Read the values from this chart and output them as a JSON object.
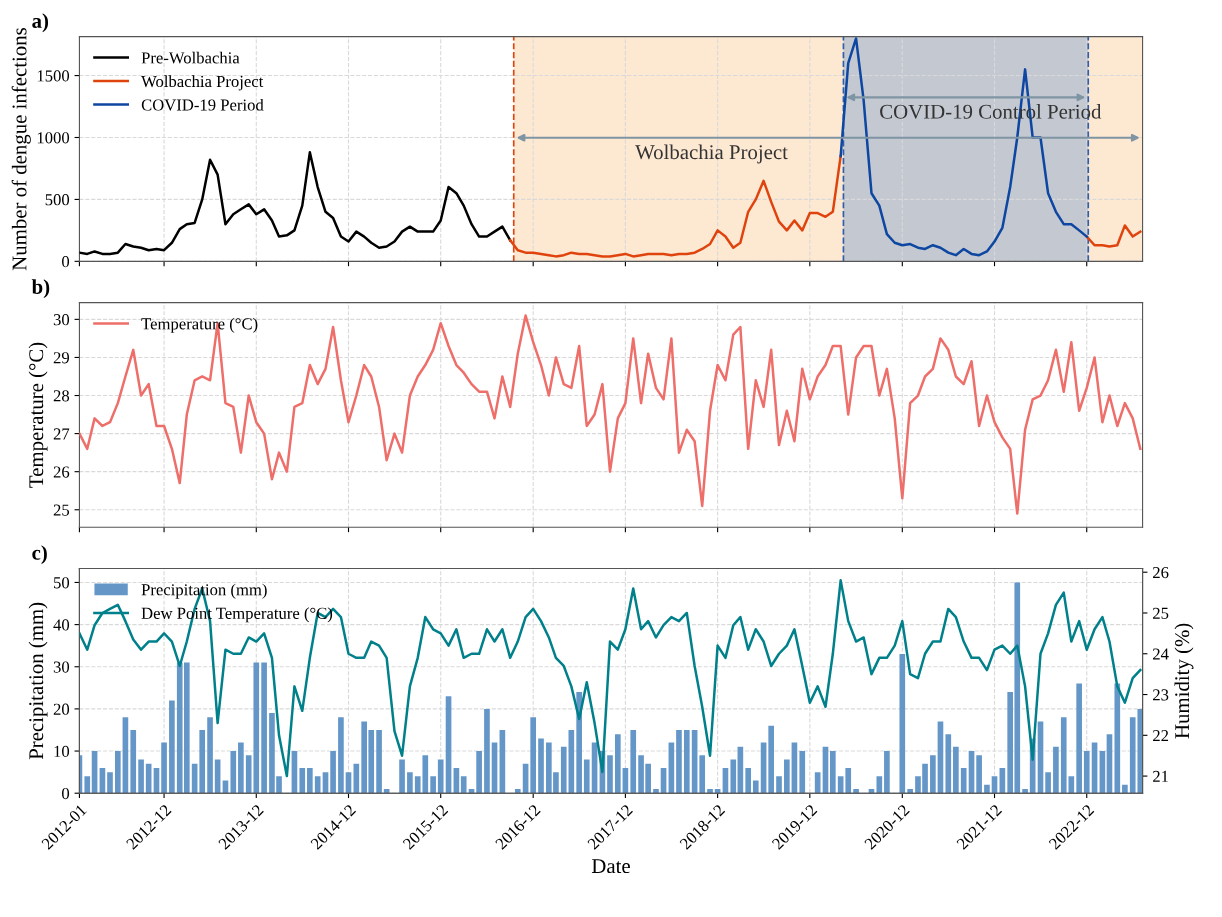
{
  "chart_data": [
    {
      "type": "line",
      "title": "a)",
      "ylabel": "Number of dengue infections",
      "x": [
        "2012-01",
        "2012-02",
        "2012-03",
        "2012-04",
        "2012-05",
        "2012-06",
        "2012-07",
        "2012-08",
        "2012-09",
        "2012-10",
        "2012-11",
        "2012-12",
        "2013-01",
        "2013-02",
        "2013-03",
        "2013-04",
        "2013-05",
        "2013-06",
        "2013-07",
        "2013-08",
        "2013-09",
        "2013-10",
        "2013-11",
        "2013-12",
        "2014-01",
        "2014-02",
        "2014-03",
        "2014-04",
        "2014-05",
        "2014-06",
        "2014-07",
        "2014-08",
        "2014-09",
        "2014-10",
        "2014-11",
        "2014-12",
        "2015-01",
        "2015-02",
        "2015-03",
        "2015-04",
        "2015-05",
        "2015-06",
        "2015-07",
        "2015-08",
        "2015-09",
        "2015-10",
        "2015-11",
        "2015-12",
        "2016-01",
        "2016-02",
        "2016-03",
        "2016-04",
        "2016-05",
        "2016-06",
        "2016-07",
        "2016-08",
        "2016-09",
        "2016-10",
        "2016-11",
        "2016-12",
        "2017-01",
        "2017-02",
        "2017-03",
        "2017-04",
        "2017-05",
        "2017-06",
        "2017-07",
        "2017-08",
        "2017-09",
        "2017-10",
        "2017-11",
        "2017-12",
        "2018-01",
        "2018-02",
        "2018-03",
        "2018-04",
        "2018-05",
        "2018-06",
        "2018-07",
        "2018-08",
        "2018-09",
        "2018-10",
        "2018-11",
        "2018-12",
        "2019-01",
        "2019-02",
        "2019-03",
        "2019-04",
        "2019-05",
        "2019-06",
        "2019-07",
        "2019-08",
        "2019-09",
        "2019-10",
        "2019-11",
        "2019-12",
        "2020-01",
        "2020-02",
        "2020-03",
        "2020-04",
        "2020-05",
        "2020-06",
        "2020-07",
        "2020-08",
        "2020-09",
        "2020-10",
        "2020-11",
        "2020-12",
        "2021-01",
        "2021-02",
        "2021-03",
        "2021-04",
        "2021-05",
        "2021-06",
        "2021-07",
        "2021-08",
        "2021-09",
        "2021-10",
        "2021-11",
        "2021-12",
        "2022-01",
        "2022-02",
        "2022-03",
        "2022-04",
        "2022-05",
        "2022-06",
        "2022-07",
        "2022-08",
        "2022-09",
        "2022-10",
        "2022-11",
        "2022-12",
        "2023-01",
        "2023-02",
        "2023-03",
        "2023-04",
        "2023-05",
        "2023-06",
        "2023-07"
      ],
      "series": [
        {
          "name": "Pre-Wolbachia",
          "color": "#000000",
          "values": [
            70,
            60,
            80,
            60,
            60,
            70,
            140,
            120,
            110,
            90,
            100,
            90,
            150,
            260,
            300,
            310,
            500,
            820,
            700,
            300,
            380,
            420,
            460,
            380,
            420,
            330,
            200,
            210,
            250,
            450,
            880,
            600,
            400,
            350,
            200,
            160,
            240,
            200,
            150,
            110,
            120,
            160,
            240,
            280,
            240,
            240,
            240,
            330,
            600,
            550,
            450,
            300,
            200,
            200,
            240,
            280,
            170,
            null,
            null,
            null,
            null,
            null,
            null,
            null,
            null,
            null,
            null,
            null,
            null,
            null,
            null,
            null,
            null,
            null,
            null,
            null,
            null,
            null,
            null,
            null,
            null,
            null,
            null,
            null,
            null,
            null,
            null,
            null,
            null,
            null,
            null,
            null,
            null,
            null,
            null,
            null,
            null,
            null,
            null,
            null,
            null,
            null,
            null,
            null,
            null,
            null,
            null,
            null,
            null,
            null,
            null,
            null,
            null,
            null,
            null,
            null,
            null,
            null,
            null,
            null,
            null,
            null,
            null,
            null,
            null,
            null,
            null,
            null,
            null,
            null,
            null,
            null,
            null,
            null,
            null,
            null,
            null,
            null,
            null
          ]
        },
        {
          "name": "Wolbachia Project",
          "color": "#e0440e",
          "values": [
            null,
            null,
            null,
            null,
            null,
            null,
            null,
            null,
            null,
            null,
            null,
            null,
            null,
            null,
            null,
            null,
            null,
            null,
            null,
            null,
            null,
            null,
            null,
            null,
            null,
            null,
            null,
            null,
            null,
            null,
            null,
            null,
            null,
            null,
            null,
            null,
            null,
            null,
            null,
            null,
            null,
            null,
            null,
            null,
            null,
            null,
            null,
            null,
            null,
            null,
            null,
            null,
            null,
            null,
            null,
            null,
            170,
            90,
            70,
            70,
            60,
            50,
            40,
            50,
            70,
            60,
            60,
            50,
            40,
            40,
            50,
            60,
            40,
            50,
            60,
            60,
            60,
            50,
            60,
            60,
            70,
            100,
            140,
            250,
            200,
            110,
            150,
            400,
            500,
            650,
            480,
            320,
            250,
            330,
            250,
            390,
            390,
            360,
            400,
            850,
            null,
            null,
            null,
            null,
            null,
            null,
            null,
            null,
            null,
            null,
            null,
            null,
            null,
            null,
            null,
            null,
            null,
            null,
            null,
            null,
            null,
            null,
            null,
            null,
            null,
            null,
            null,
            null,
            null,
            null,
            null,
            200,
            130,
            130,
            120,
            130,
            290,
            200,
            240
          ]
        },
        {
          "name": "COVID-19 Period",
          "color": "#0d47a1",
          "values": [
            null,
            null,
            null,
            null,
            null,
            null,
            null,
            null,
            null,
            null,
            null,
            null,
            null,
            null,
            null,
            null,
            null,
            null,
            null,
            null,
            null,
            null,
            null,
            null,
            null,
            null,
            null,
            null,
            null,
            null,
            null,
            null,
            null,
            null,
            null,
            null,
            null,
            null,
            null,
            null,
            null,
            null,
            null,
            null,
            null,
            null,
            null,
            null,
            null,
            null,
            null,
            null,
            null,
            null,
            null,
            null,
            null,
            null,
            null,
            null,
            null,
            null,
            null,
            null,
            null,
            null,
            null,
            null,
            null,
            null,
            null,
            null,
            null,
            null,
            null,
            null,
            null,
            null,
            null,
            null,
            null,
            null,
            null,
            null,
            null,
            null,
            null,
            null,
            null,
            null,
            null,
            null,
            null,
            null,
            null,
            null,
            null,
            null,
            null,
            850,
            1600,
            1800,
            1300,
            550,
            450,
            220,
            150,
            130,
            140,
            110,
            100,
            130,
            110,
            70,
            50,
            100,
            60,
            50,
            80,
            160,
            270,
            600,
            1000,
            1550,
            1000,
            1000,
            550,
            400,
            300,
            300,
            250,
            200,
            null,
            null,
            null,
            null,
            null,
            null,
            null
          ]
        }
      ],
      "xlim": [
        "2012-01",
        "2023-07-10"
      ],
      "xticks": [
        "2012-01",
        "2012-12",
        "2013-12",
        "2014-12",
        "2015-12",
        "2016-12",
        "2017-12",
        "2018-12",
        "2019-12",
        "2020-12",
        "2021-12",
        "2022-12"
      ],
      "ylim": [
        0,
        1814
      ],
      "yticks": [
        0,
        500,
        1000,
        1500
      ],
      "bands": [
        {
          "axis": "x",
          "from": "2016-09-15",
          "to": "2023-07-10",
          "label": "Wolbachia Project",
          "color": "#fde8d2"
        },
        {
          "axis": "x",
          "from": "2020-04-12",
          "to": "2022-12-07",
          "label": "COVID-19 Control Period",
          "color": "#c3c8d1"
        }
      ],
      "ref_lines": [
        {
          "axis": "x",
          "value": "2016-09-15",
          "color": "#e0440e",
          "line_style": "dashed"
        },
        {
          "axis": "x",
          "value": "2020-04-12",
          "color": "#2f5faa",
          "line_style": "dashed"
        },
        {
          "axis": "x",
          "value": "2022-12-07",
          "color": "#2f5faa",
          "line_style": "dashed"
        }
      ],
      "grid": true,
      "legend": "top left",
      "tick_labels": "y"
    },
    {
      "type": "line",
      "title": "b)",
      "ylabel": "Temperature (°C)",
      "x": [
        "2012-01",
        "2012-02",
        "2012-03",
        "2012-04",
        "2012-05",
        "2012-06",
        "2012-07",
        "2012-08",
        "2012-09",
        "2012-10",
        "2012-11",
        "2012-12",
        "2013-01",
        "2013-02",
        "2013-03",
        "2013-04",
        "2013-05",
        "2013-06",
        "2013-07",
        "2013-08",
        "2013-09",
        "2013-10",
        "2013-11",
        "2013-12",
        "2014-01",
        "2014-02",
        "2014-03",
        "2014-04",
        "2014-05",
        "2014-06",
        "2014-07",
        "2014-08",
        "2014-09",
        "2014-10",
        "2014-11",
        "2014-12",
        "2015-01",
        "2015-02",
        "2015-03",
        "2015-04",
        "2015-05",
        "2015-06",
        "2015-07",
        "2015-08",
        "2015-09",
        "2015-10",
        "2015-11",
        "2015-12",
        "2016-01",
        "2016-02",
        "2016-03",
        "2016-04",
        "2016-05",
        "2016-06",
        "2016-07",
        "2016-08",
        "2016-09",
        "2016-10",
        "2016-11",
        "2016-12",
        "2017-01",
        "2017-02",
        "2017-03",
        "2017-04",
        "2017-05",
        "2017-06",
        "2017-07",
        "2017-08",
        "2017-09",
        "2017-10",
        "2017-11",
        "2017-12",
        "2018-01",
        "2018-02",
        "2018-03",
        "2018-04",
        "2018-05",
        "2018-06",
        "2018-07",
        "2018-08",
        "2018-09",
        "2018-10",
        "2018-11",
        "2018-12",
        "2019-01",
        "2019-02",
        "2019-03",
        "2019-04",
        "2019-05",
        "2019-06",
        "2019-07",
        "2019-08",
        "2019-09",
        "2019-10",
        "2019-11",
        "2019-12",
        "2020-01",
        "2020-02",
        "2020-03",
        "2020-04",
        "2020-05",
        "2020-06",
        "2020-07",
        "2020-08",
        "2020-09",
        "2020-10",
        "2020-11",
        "2020-12",
        "2021-01",
        "2021-02",
        "2021-03",
        "2021-04",
        "2021-05",
        "2021-06",
        "2021-07",
        "2021-08",
        "2021-09",
        "2021-10",
        "2021-11",
        "2021-12",
        "2022-01",
        "2022-02",
        "2022-03",
        "2022-04",
        "2022-05",
        "2022-06",
        "2022-07",
        "2022-08",
        "2022-09",
        "2022-10",
        "2022-11",
        "2022-12",
        "2023-01",
        "2023-02",
        "2023-03",
        "2023-04",
        "2023-05",
        "2023-06",
        "2023-07"
      ],
      "series": [
        {
          "name": "Temperature (°C)",
          "color": "#ee6e6a",
          "values": [
            27.0,
            26.6,
            27.4,
            27.2,
            27.3,
            27.8,
            28.5,
            29.2,
            28.0,
            28.3,
            27.2,
            27.2,
            26.6,
            25.7,
            27.5,
            28.4,
            28.5,
            28.4,
            29.9,
            27.8,
            27.7,
            26.5,
            28.0,
            27.3,
            27.0,
            25.8,
            26.5,
            26.0,
            27.7,
            27.8,
            28.8,
            28.3,
            28.7,
            29.8,
            28.4,
            27.3,
            28.0,
            28.8,
            28.5,
            27.7,
            26.3,
            27.0,
            26.5,
            28.0,
            28.5,
            28.8,
            29.2,
            29.9,
            29.3,
            28.8,
            28.6,
            28.3,
            28.1,
            28.1,
            27.4,
            28.5,
            27.7,
            29.1,
            30.1,
            29.4,
            28.8,
            28.0,
            29.0,
            28.3,
            28.2,
            29.3,
            27.2,
            27.5,
            28.3,
            26.0,
            27.4,
            27.8,
            29.5,
            27.8,
            29.1,
            28.2,
            27.9,
            29.5,
            26.5,
            27.1,
            26.8,
            25.1,
            27.6,
            28.8,
            28.4,
            29.6,
            29.8,
            26.6,
            28.4,
            27.7,
            29.2,
            26.7,
            27.6,
            26.8,
            28.7,
            27.9,
            28.5,
            28.8,
            29.3,
            29.3,
            27.5,
            29.0,
            29.3,
            29.3,
            28.0,
            28.7,
            27.4,
            25.3,
            27.8,
            28.0,
            28.5,
            28.7,
            29.5,
            29.2,
            28.5,
            28.3,
            28.9,
            27.2,
            28.0,
            27.3,
            26.9,
            26.6,
            24.9,
            27.1,
            27.9,
            28.0,
            28.4,
            29.2,
            28.1,
            29.4,
            27.6,
            28.2,
            29.0,
            27.3,
            28.0,
            27.2,
            27.8,
            27.4,
            26.6
          ]
        }
      ],
      "xlim": [
        "2012-01",
        "2023-07-10"
      ],
      "xticks": [
        "2012-01",
        "2012-12",
        "2013-12",
        "2014-12",
        "2015-12",
        "2016-12",
        "2017-12",
        "2018-12",
        "2019-12",
        "2020-12",
        "2021-12",
        "2022-12"
      ],
      "ylim": [
        24.54,
        30.44
      ],
      "yticks": [
        25,
        26,
        27,
        28,
        29,
        30
      ],
      "grid": true,
      "legend": "top left",
      "tick_labels": "y"
    },
    {
      "type": "bar",
      "title": "c)",
      "xlabel": "Date",
      "ylabel": "Precipitation (mm)",
      "y2label": "Humidity (%)",
      "x": [
        "2012-01",
        "2012-02",
        "2012-03",
        "2012-04",
        "2012-05",
        "2012-06",
        "2012-07",
        "2012-08",
        "2012-09",
        "2012-10",
        "2012-11",
        "2012-12",
        "2013-01",
        "2013-02",
        "2013-03",
        "2013-04",
        "2013-05",
        "2013-06",
        "2013-07",
        "2013-08",
        "2013-09",
        "2013-10",
        "2013-11",
        "2013-12",
        "2014-01",
        "2014-02",
        "2014-03",
        "2014-04",
        "2014-05",
        "2014-06",
        "2014-07",
        "2014-08",
        "2014-09",
        "2014-10",
        "2014-11",
        "2014-12",
        "2015-01",
        "2015-02",
        "2015-03",
        "2015-04",
        "2015-05",
        "2015-06",
        "2015-07",
        "2015-08",
        "2015-09",
        "2015-10",
        "2015-11",
        "2015-12",
        "2016-01",
        "2016-02",
        "2016-03",
        "2016-04",
        "2016-05",
        "2016-06",
        "2016-07",
        "2016-08",
        "2016-09",
        "2016-10",
        "2016-11",
        "2016-12",
        "2017-01",
        "2017-02",
        "2017-03",
        "2017-04",
        "2017-05",
        "2017-06",
        "2017-07",
        "2017-08",
        "2017-09",
        "2017-10",
        "2017-11",
        "2017-12",
        "2018-01",
        "2018-02",
        "2018-03",
        "2018-04",
        "2018-05",
        "2018-06",
        "2018-07",
        "2018-08",
        "2018-09",
        "2018-10",
        "2018-11",
        "2018-12",
        "2019-01",
        "2019-02",
        "2019-03",
        "2019-04",
        "2019-05",
        "2019-06",
        "2019-07",
        "2019-08",
        "2019-09",
        "2019-10",
        "2019-11",
        "2019-12",
        "2020-01",
        "2020-02",
        "2020-03",
        "2020-04",
        "2020-05",
        "2020-06",
        "2020-07",
        "2020-08",
        "2020-09",
        "2020-10",
        "2020-11",
        "2020-12",
        "2021-01",
        "2021-02",
        "2021-03",
        "2021-04",
        "2021-05",
        "2021-06",
        "2021-07",
        "2021-08",
        "2021-09",
        "2021-10",
        "2021-11",
        "2021-12",
        "2022-01",
        "2022-02",
        "2022-03",
        "2022-04",
        "2022-05",
        "2022-06",
        "2022-07",
        "2022-08",
        "2022-09",
        "2022-10",
        "2022-11",
        "2022-12",
        "2023-01",
        "2023-02",
        "2023-03",
        "2023-04",
        "2023-05",
        "2023-06",
        "2023-07"
      ],
      "series": [
        {
          "name": "Precipitation (mm)",
          "type": "bar",
          "color": "#6497c8",
          "values": [
            9,
            4,
            10,
            6,
            5,
            10,
            18,
            15,
            8,
            7,
            6,
            12,
            22,
            31,
            31,
            7,
            15,
            18,
            8,
            3,
            10,
            12,
            9,
            31,
            31,
            19,
            4,
            0,
            10,
            6,
            6,
            4,
            5,
            10,
            18,
            5,
            7,
            17,
            15,
            15,
            1,
            0,
            8,
            5,
            4,
            9,
            4,
            8,
            23,
            6,
            4,
            1,
            10,
            20,
            12,
            15,
            0,
            1,
            7,
            18,
            13,
            12,
            5,
            11,
            15,
            24,
            8,
            12,
            10,
            9,
            14,
            6,
            15,
            9,
            7,
            1,
            6,
            12,
            15,
            15,
            15,
            9,
            1,
            1,
            6,
            8,
            11,
            6,
            3,
            12,
            16,
            4,
            8,
            12,
            10,
            0,
            5,
            11,
            10,
            4,
            6,
            1,
            0,
            1,
            4,
            10,
            0,
            33,
            1,
            4,
            7,
            9,
            17,
            14,
            11,
            6,
            10,
            9,
            2,
            4,
            6,
            24,
            50,
            1,
            13,
            17,
            5,
            11,
            18,
            4,
            26,
            10,
            12,
            10,
            14,
            26,
            2,
            18,
            20
          ]
        },
        {
          "name": "Dew Point Temperature (°C)",
          "type": "line",
          "axis": "y2",
          "color": "#00808a",
          "values": [
            24.5,
            24.1,
            24.7,
            25.0,
            25.1,
            25.2,
            24.8,
            24.35,
            24.1,
            24.3,
            24.3,
            24.5,
            24.3,
            23.7,
            24.3,
            25.1,
            25.6,
            24.8,
            22.3,
            24.1,
            24.0,
            24.0,
            24.4,
            24.3,
            24.5,
            23.9,
            22.0,
            21.0,
            23.2,
            22.6,
            23.9,
            25.0,
            24.9,
            25.1,
            24.9,
            24.0,
            23.9,
            23.9,
            24.3,
            24.2,
            23.9,
            22.1,
            21.5,
            23.2,
            23.9,
            24.9,
            24.6,
            24.5,
            24.2,
            24.6,
            23.9,
            24.0,
            24.0,
            24.6,
            24.3,
            24.6,
            23.9,
            24.3,
            24.9,
            25.1,
            24.8,
            24.4,
            23.9,
            23.7,
            23.2,
            22.4,
            23.3,
            22.3,
            21.1,
            24.3,
            24.1,
            24.6,
            25.6,
            24.6,
            24.8,
            24.4,
            24.7,
            24.9,
            24.8,
            25.0,
            23.7,
            22.7,
            21.5,
            24.2,
            23.9,
            24.7,
            24.9,
            24.1,
            24.6,
            24.3,
            23.7,
            24.0,
            24.2,
            24.6,
            23.7,
            22.8,
            23.2,
            22.7,
            24.0,
            25.8,
            24.8,
            24.3,
            24.4,
            23.5,
            23.9,
            23.9,
            24.2,
            24.8,
            23.5,
            23.4,
            24.0,
            24.3,
            24.3,
            25.1,
            24.9,
            24.3,
            23.9,
            23.9,
            23.6,
            24.1,
            24.2,
            24.0,
            24.2,
            23.2,
            21.4,
            24.0,
            24.5,
            25.2,
            25.5,
            24.3,
            24.8,
            24.1,
            24.6,
            24.9,
            24.3,
            23.2,
            22.8,
            23.4,
            23.6
          ]
        }
      ],
      "xlim": [
        "2012-01",
        "2023-07-10"
      ],
      "xticks": [
        "2012-01",
        "2012-12",
        "2013-12",
        "2014-12",
        "2015-12",
        "2016-12",
        "2017-12",
        "2018-12",
        "2019-12",
        "2020-12",
        "2021-12",
        "2022-12"
      ],
      "ylim": [
        0,
        53.3
      ],
      "yticks": [
        0,
        10,
        20,
        30,
        40,
        50
      ],
      "y2lim": [
        20.58,
        26.09
      ],
      "y2ticks": [
        21,
        22,
        23,
        24,
        25,
        26
      ],
      "grid": true,
      "legend": "top left"
    }
  ]
}
